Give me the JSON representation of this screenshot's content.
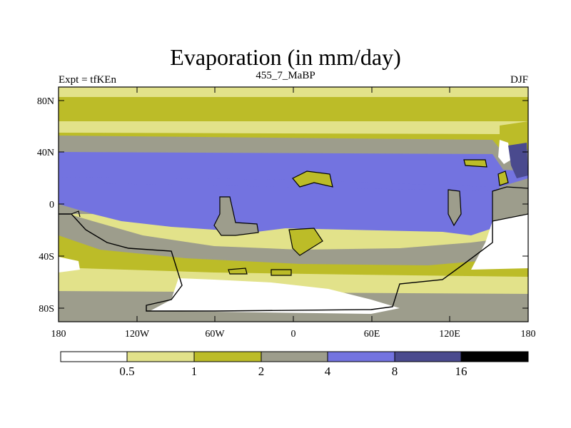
{
  "title": "Evaporation (in mm/day)",
  "left_label": "Expt = tfKEn",
  "center_label": "455_7_MaBP",
  "right_label": "DJF",
  "y_ticks": [
    "80N",
    "40N",
    "0",
    "40S",
    "80S"
  ],
  "x_ticks": [
    "180",
    "120W",
    "60W",
    "0",
    "60E",
    "120E",
    "180"
  ],
  "colorbar": {
    "levels": [
      "0.5",
      "1",
      "2",
      "4",
      "8",
      "16"
    ],
    "colors": [
      "#ffffff",
      "#e2e28a",
      "#bcbc28",
      "#9d9d8c",
      "#7373e0",
      "#4a4a8e",
      "#000000"
    ]
  }
}
